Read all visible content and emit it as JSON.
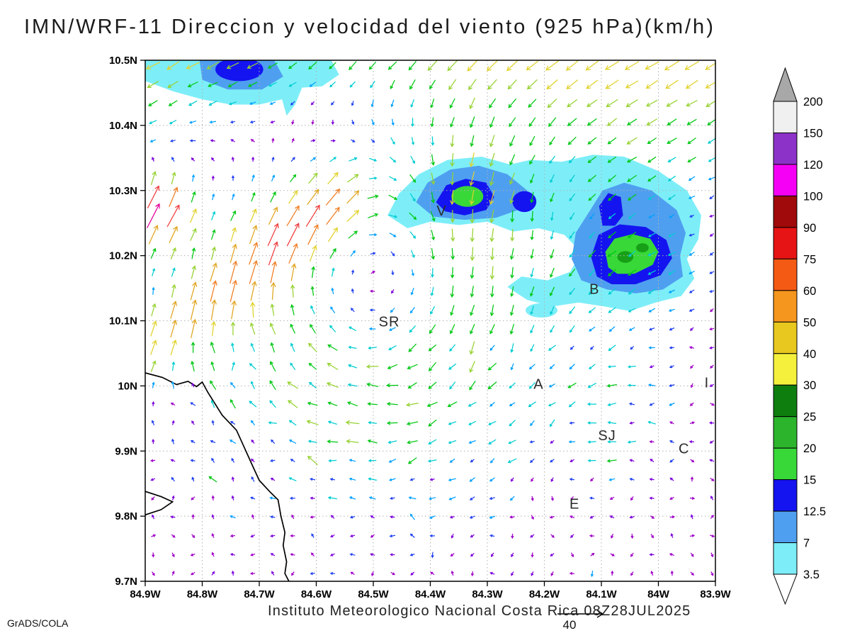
{
  "title": "IMN/WRF-11 Direccion y velocidad del viento (925 hPa)(km/h)",
  "credit": "GrADS/COLA",
  "caption": "Instituto Meteorologico Nacional Costa Rica 08Z28JUL2025",
  "chart_data": {
    "type": "vector_field_map",
    "model": "IMN/WRF-11",
    "variable": "Direccion y velocidad del viento",
    "level": "925 hPa",
    "units": "km/h",
    "valid_time": "08Z28JUL2025",
    "x_axis": {
      "min": -84.9,
      "max": -83.9,
      "tick_values": [
        -84.9,
        -84.8,
        -84.7,
        -84.6,
        -84.5,
        -84.4,
        -84.3,
        -84.2,
        -84.1,
        -84.0,
        -83.9
      ],
      "tick_labels": [
        "84.9W",
        "84.8W",
        "84.7W",
        "84.6W",
        "84.5W",
        "84.4W",
        "84.3W",
        "84.2W",
        "84.1W",
        "84W",
        "83.9W"
      ]
    },
    "y_axis": {
      "min": 9.7,
      "max": 10.5,
      "tick_values": [
        9.7,
        9.8,
        9.9,
        10.0,
        10.1,
        10.2,
        10.3,
        10.4,
        10.5
      ],
      "tick_labels": [
        "9.7N",
        "9.8N",
        "9.9N",
        "10N",
        "10.1N",
        "10.2N",
        "10.3N",
        "10.4N",
        "10.5N"
      ]
    },
    "grid_color": "#b0b0b0",
    "coast_color": "#000000",
    "colorbar": {
      "labels": [
        "200",
        "150",
        "120",
        "100",
        "90",
        "75",
        "60",
        "50",
        "40",
        "30",
        "25",
        "20",
        "15",
        "12.5",
        "7",
        "3.5"
      ],
      "band_colors": [
        "#7deef8",
        "#4f9ff0",
        "#1414f0",
        "#38d838",
        "#2cb42c",
        "#0e7e0e",
        "#f5f03c",
        "#e8c81e",
        "#f5961e",
        "#f55a14",
        "#e61414",
        "#a00a0a",
        "#f500f5",
        "#8c32c8",
        "#f0f0f0"
      ],
      "below_color": "#ffffff",
      "above_color": "#a8a8a8"
    },
    "arrow_palette": {
      "thresholds": [
        4,
        6.5,
        9,
        12,
        15,
        19,
        23,
        28,
        34,
        40,
        48
      ],
      "colors": [
        "#a000c8",
        "#7d00dc",
        "#2041f0",
        "#00a0ff",
        "#00cdd2",
        "#00c812",
        "#96d232",
        "#e1d22d",
        "#e1a520",
        "#f07d23",
        "#f03c3c",
        "#e1009b"
      ]
    },
    "reference_vector": {
      "value": "40"
    },
    "stations": [
      {
        "label": "V",
        "lon": -84.38,
        "lat": 10.268
      },
      {
        "label": "B",
        "lon": -84.112,
        "lat": 10.148
      },
      {
        "label": "SR",
        "lon": -84.472,
        "lat": 10.098
      },
      {
        "label": "A",
        "lon": -84.21,
        "lat": 10.002
      },
      {
        "label": "SJ",
        "lon": -84.09,
        "lat": 9.923
      },
      {
        "label": "C",
        "lon": -83.955,
        "lat": 9.903
      },
      {
        "label": "E",
        "lon": -84.147,
        "lat": 9.818
      },
      {
        "label": "I",
        "lon": -83.915,
        "lat": 10.004
      }
    ],
    "shaded_regions": [
      {
        "t": "p",
        "c": "#7deef8",
        "pts": [
          [
            -84.9,
            10.502
          ],
          [
            -84.575,
            10.502
          ],
          [
            -84.56,
            10.478
          ],
          [
            -84.59,
            10.46
          ],
          [
            -84.625,
            10.458
          ],
          [
            -84.637,
            10.432
          ],
          [
            -84.652,
            10.415
          ],
          [
            -84.66,
            10.44
          ],
          [
            -84.7,
            10.432
          ],
          [
            -84.75,
            10.432
          ],
          [
            -84.8,
            10.44
          ],
          [
            -84.85,
            10.452
          ],
          [
            -84.9,
            10.468
          ]
        ]
      },
      {
        "t": "p",
        "c": "#4f9ff0",
        "pts": [
          [
            -84.805,
            10.502
          ],
          [
            -84.675,
            10.502
          ],
          [
            -84.658,
            10.475
          ],
          [
            -84.695,
            10.455
          ],
          [
            -84.755,
            10.455
          ],
          [
            -84.8,
            10.47
          ]
        ]
      },
      {
        "t": "e",
        "c": "#1414f0",
        "cx": -84.735,
        "cy": 10.486,
        "rx": 0.042,
        "ry": 0.018
      },
      {
        "t": "p",
        "c": "#7deef8",
        "pts": [
          [
            -84.475,
            10.262
          ],
          [
            -84.455,
            10.295
          ],
          [
            -84.42,
            10.325
          ],
          [
            -84.37,
            10.347
          ],
          [
            -84.31,
            10.352
          ],
          [
            -84.26,
            10.34
          ],
          [
            -84.225,
            10.347
          ],
          [
            -84.17,
            10.344
          ],
          [
            -84.115,
            10.355
          ],
          [
            -84.06,
            10.352
          ],
          [
            -84.0,
            10.33
          ],
          [
            -83.95,
            10.3
          ],
          [
            -83.925,
            10.262
          ],
          [
            -83.93,
            10.225
          ],
          [
            -83.95,
            10.195
          ],
          [
            -83.937,
            10.165
          ],
          [
            -83.96,
            10.138
          ],
          [
            -84.005,
            10.128
          ],
          [
            -84.05,
            10.115
          ],
          [
            -84.095,
            10.122
          ],
          [
            -84.14,
            10.128
          ],
          [
            -84.185,
            10.122
          ],
          [
            -84.23,
            10.132
          ],
          [
            -84.265,
            10.152
          ],
          [
            -84.24,
            10.168
          ],
          [
            -84.195,
            10.162
          ],
          [
            -84.155,
            10.175
          ],
          [
            -84.135,
            10.205
          ],
          [
            -84.165,
            10.232
          ],
          [
            -84.21,
            10.242
          ],
          [
            -84.255,
            10.237
          ],
          [
            -84.3,
            10.252
          ],
          [
            -84.35,
            10.247
          ],
          [
            -84.4,
            10.252
          ],
          [
            -84.44,
            10.242
          ]
        ]
      },
      {
        "t": "e",
        "c": "#7deef8",
        "cx": -84.205,
        "cy": 10.116,
        "rx": 0.028,
        "ry": 0.011
      },
      {
        "t": "p",
        "c": "#4f9ff0",
        "pts": [
          [
            -84.425,
            10.282
          ],
          [
            -84.405,
            10.312
          ],
          [
            -84.365,
            10.332
          ],
          [
            -84.315,
            10.338
          ],
          [
            -84.265,
            10.325
          ],
          [
            -84.23,
            10.3
          ],
          [
            -84.24,
            10.272
          ],
          [
            -84.285,
            10.258
          ],
          [
            -84.34,
            10.255
          ],
          [
            -84.395,
            10.26
          ]
        ]
      },
      {
        "t": "p",
        "c": "#1414f0",
        "pts": [
          [
            -84.39,
            10.282
          ],
          [
            -84.372,
            10.308
          ],
          [
            -84.338,
            10.318
          ],
          [
            -84.302,
            10.312
          ],
          [
            -84.288,
            10.29
          ],
          [
            -84.302,
            10.27
          ],
          [
            -84.34,
            10.262
          ],
          [
            -84.374,
            10.268
          ]
        ]
      },
      {
        "t": "e",
        "c": "#38d838",
        "cx": -84.335,
        "cy": 10.291,
        "rx": 0.028,
        "ry": 0.016
      },
      {
        "t": "e",
        "c": "#1414f0",
        "cx": -84.235,
        "cy": 10.283,
        "rx": 0.021,
        "ry": 0.016
      },
      {
        "t": "p",
        "c": "#4f9ff0",
        "pts": [
          [
            -84.135,
            10.162
          ],
          [
            -84.152,
            10.195
          ],
          [
            -84.145,
            10.235
          ],
          [
            -84.118,
            10.272
          ],
          [
            -84.098,
            10.3
          ],
          [
            -84.06,
            10.312
          ],
          [
            -84.012,
            10.3
          ],
          [
            -83.968,
            10.27
          ],
          [
            -83.952,
            10.235
          ],
          [
            -83.962,
            10.2
          ],
          [
            -83.957,
            10.168
          ],
          [
            -83.992,
            10.148
          ],
          [
            -84.04,
            10.142
          ],
          [
            -84.09,
            10.148
          ]
        ]
      },
      {
        "t": "p",
        "c": "#1414f0",
        "pts": [
          [
            -84.108,
            10.168
          ],
          [
            -84.118,
            10.198
          ],
          [
            -84.105,
            10.232
          ],
          [
            -84.068,
            10.248
          ],
          [
            -84.022,
            10.244
          ],
          [
            -83.986,
            10.224
          ],
          [
            -83.976,
            10.196
          ],
          [
            -83.996,
            10.17
          ],
          [
            -84.04,
            10.156
          ],
          [
            -84.082,
            10.156
          ]
        ]
      },
      {
        "t": "p",
        "c": "#1414f0",
        "pts": [
          [
            -84.098,
            10.246
          ],
          [
            -84.104,
            10.276
          ],
          [
            -84.088,
            10.296
          ],
          [
            -84.066,
            10.29
          ],
          [
            -84.062,
            10.262
          ],
          [
            -84.076,
            10.246
          ]
        ]
      },
      {
        "t": "p",
        "c": "#38d838",
        "pts": [
          [
            -84.088,
            10.182
          ],
          [
            -84.093,
            10.206
          ],
          [
            -84.077,
            10.226
          ],
          [
            -84.046,
            10.233
          ],
          [
            -84.014,
            10.226
          ],
          [
            -84.0,
            10.206
          ],
          [
            -84.01,
            10.186
          ],
          [
            -84.042,
            10.172
          ],
          [
            -84.072,
            10.172
          ]
        ]
      },
      {
        "t": "e",
        "c": "#17a017",
        "cx": -84.058,
        "cy": 10.198,
        "rx": 0.014,
        "ry": 0.009
      },
      {
        "t": "e",
        "c": "#17a017",
        "cx": -84.028,
        "cy": 10.212,
        "rx": 0.011,
        "ry": 0.007
      }
    ],
    "coastlines": [
      [
        [
          -84.9,
          10.02
        ],
        [
          -84.87,
          10.013
        ],
        [
          -84.845,
          10.002
        ],
        [
          -84.825,
          10.007
        ],
        [
          -84.81,
          9.999
        ],
        [
          -84.8,
          10.006
        ],
        [
          -84.79,
          9.99
        ],
        [
          -84.765,
          9.955
        ],
        [
          -84.74,
          9.932
        ],
        [
          -84.726,
          9.905
        ],
        [
          -84.712,
          9.878
        ],
        [
          -84.7,
          9.855
        ],
        [
          -84.682,
          9.838
        ],
        [
          -84.667,
          9.825
        ],
        [
          -84.662,
          9.8
        ],
        [
          -84.655,
          9.775
        ],
        [
          -84.658,
          9.755
        ],
        [
          -84.652,
          9.73
        ],
        [
          -84.655,
          9.712
        ],
        [
          -84.648,
          9.7
        ]
      ],
      [
        [
          -84.9,
          9.838
        ],
        [
          -84.872,
          9.83
        ],
        [
          -84.852,
          9.822
        ],
        [
          -84.872,
          9.81
        ],
        [
          -84.9,
          9.802
        ]
      ]
    ],
    "wind_features": {
      "grid": {
        "lon0": -84.886,
        "lon1": -83.906,
        "nx": 29,
        "lat0": 9.712,
        "lat1": 10.492,
        "ny": 28
      },
      "trade": {
        "lat_start": 10.28,
        "gain": 105,
        "base": 3,
        "dir": [
          -0.86,
          -0.51
        ]
      },
      "vortex": {
        "center": [
          -84.5,
          10.16
        ],
        "sigma": 0.18,
        "speed": 18
      },
      "streak": {
        "a": [
          -84.88,
          10.07
        ],
        "b": [
          -84.56,
          10.29
        ],
        "sigma": 0.055,
        "speed": 24,
        "dir": [
          0.42,
          0.91
        ]
      },
      "jet": {
        "center": [
          -84.88,
          10.27
        ],
        "sigma": 0.06,
        "speed": 44,
        "dir": [
          0.5,
          0.87
        ]
      },
      "bumps": [
        {
          "center": [
            -84.05,
            10.21
          ],
          "sigma": 0.16,
          "speed": 14,
          "dir": [
            -0.92,
            -0.39
          ]
        },
        {
          "center": [
            -84.33,
            10.29
          ],
          "sigma": 0.09,
          "speed": 14,
          "dir": [
            -0.8,
            -0.6
          ]
        },
        {
          "center": [
            -84.08,
            9.95
          ],
          "sigma": 0.11,
          "speed": 11,
          "dir": [
            -0.97,
            0.24
          ]
        }
      ],
      "noise": {
        "amp_north": 1.2,
        "amp_south": 3.2,
        "south_lat": 10.08,
        "gust_prob": 0.1,
        "gust_amp": 7
      }
    }
  }
}
